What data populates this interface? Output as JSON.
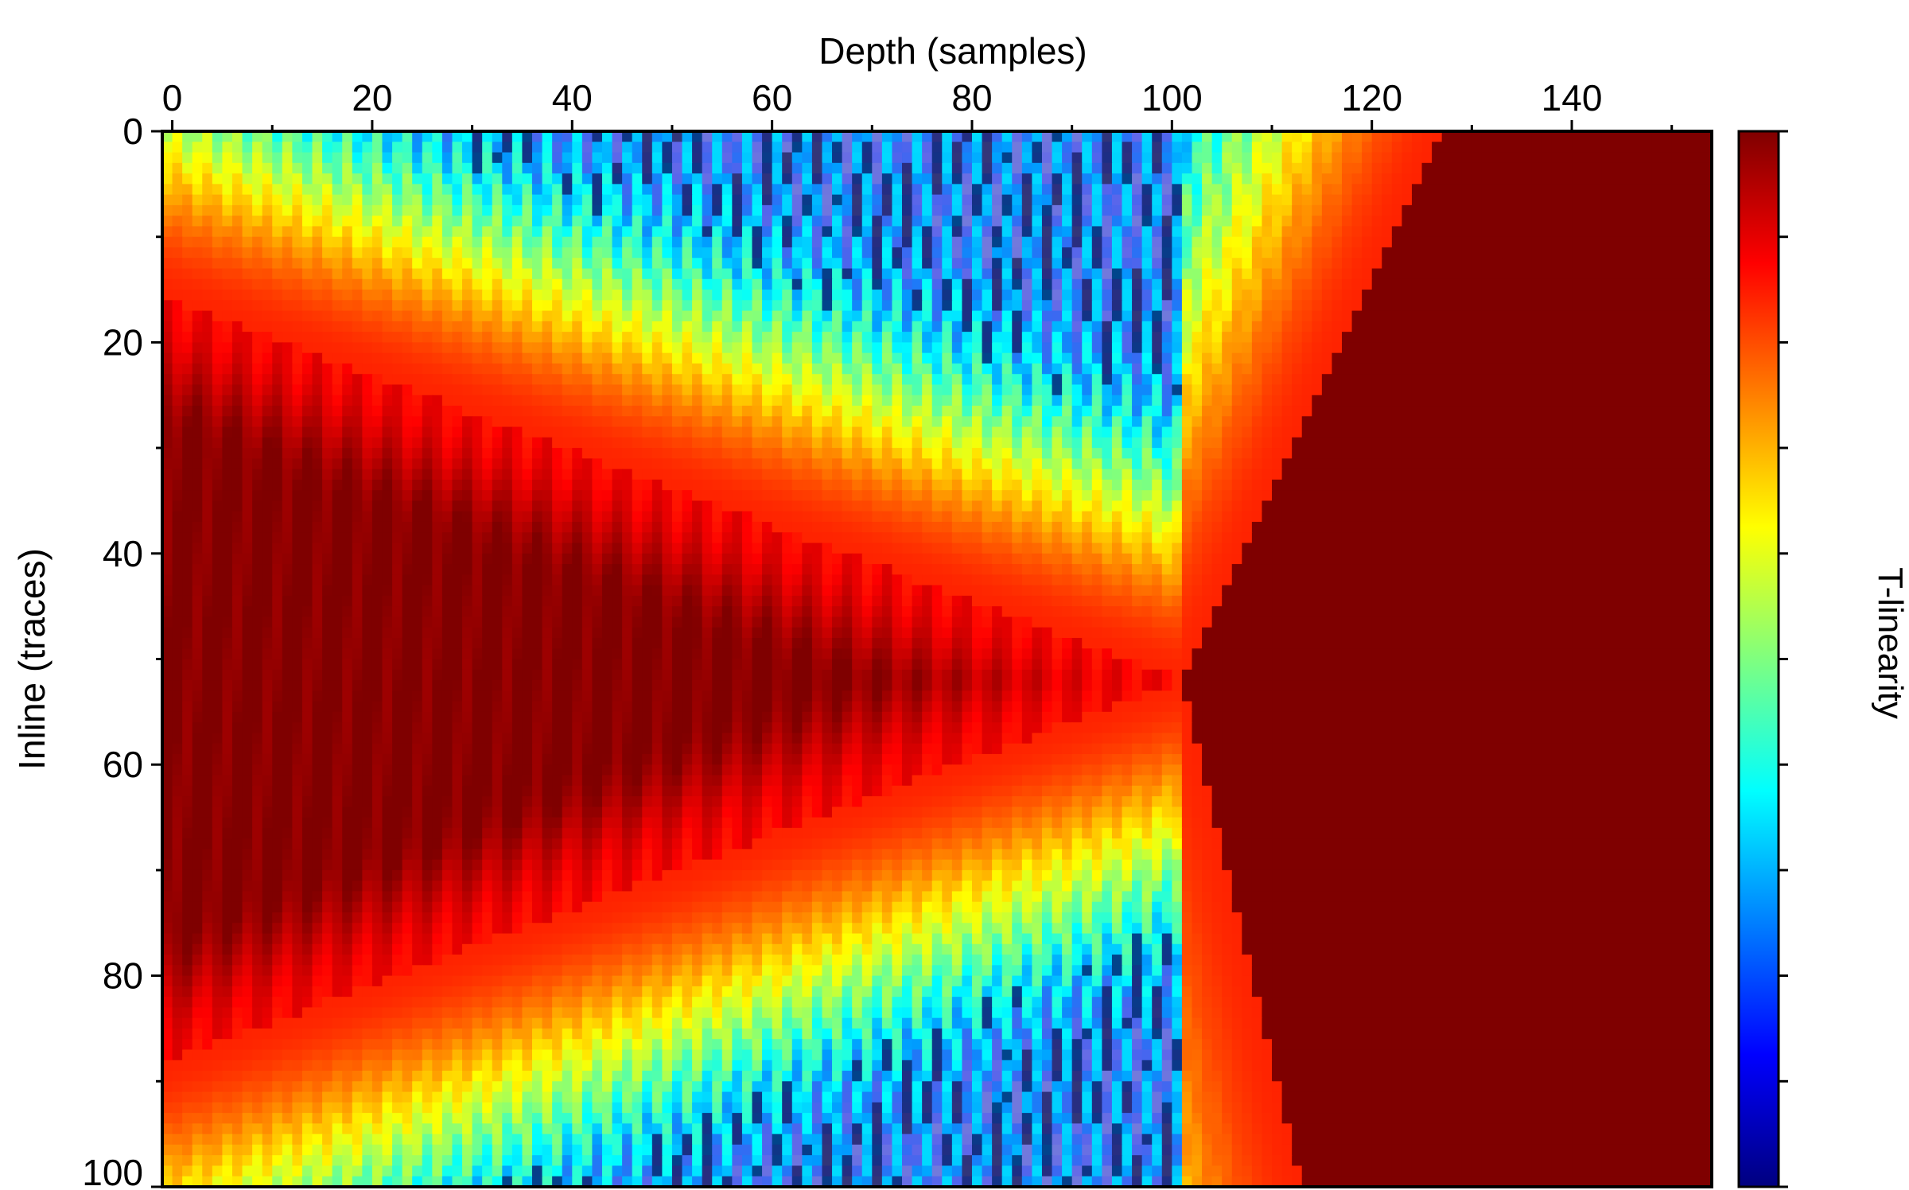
{
  "chart_data": {
    "type": "heatmap",
    "title": "",
    "xlabel": "Depth (samples)",
    "ylabel": "Inline (traces)",
    "colorbar_label": "T-linearity",
    "xlim": [
      -1,
      154
    ],
    "ylim": [
      0,
      100
    ],
    "x_axis_position": "top",
    "y_axis_inverted": true,
    "x_major_ticks": [
      0,
      20,
      40,
      60,
      80,
      100,
      120,
      140
    ],
    "x_tick_labels": [
      "0",
      "20",
      "40",
      "60",
      "80",
      "100",
      "120",
      "140"
    ],
    "y_major_ticks": [
      0,
      20,
      40,
      60,
      80,
      100
    ],
    "y_tick_labels": [
      "0",
      "20",
      "40",
      "60",
      "80",
      "100"
    ],
    "colormap": "jet",
    "colormap_stops": [
      "#00007f",
      "#0000ff",
      "#007fff",
      "#00ffff",
      "#7fff7f",
      "#ffff00",
      "#ff7f00",
      "#ff0000",
      "#7f0000"
    ],
    "colorbar_range": [
      0,
      1
    ],
    "legend": "colorbar right",
    "grid": false,
    "features": {
      "apex": [
        101,
        52
      ],
      "upper_boundary_start": [
        0,
        16
      ],
      "lower_boundary_start": [
        0,
        88
      ],
      "right_upper_boundary_end": [
        127,
        0
      ],
      "right_lower_boundary_end": [
        113,
        100
      ]
    }
  }
}
